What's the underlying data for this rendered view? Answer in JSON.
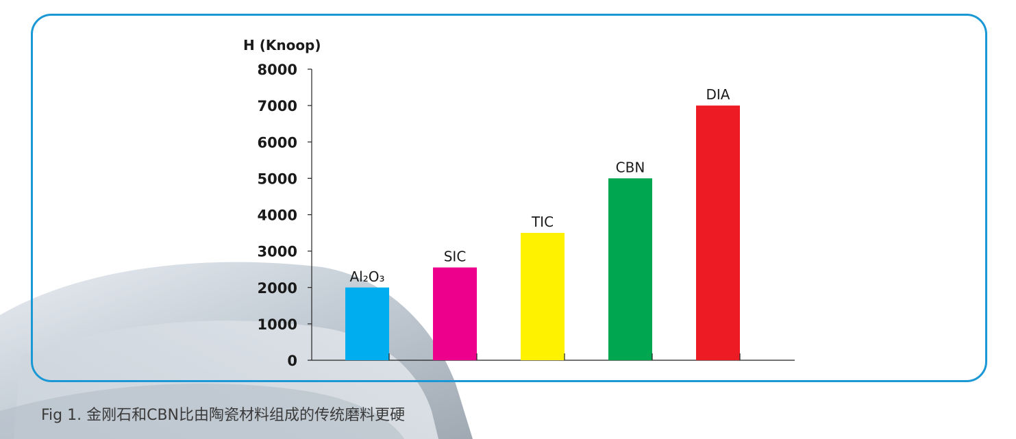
{
  "chart_data": {
    "type": "bar",
    "ylabel": "H (Knoop)",
    "ylim": [
      0,
      8000
    ],
    "yticks": [
      "0",
      "1000",
      "2000",
      "3000",
      "4000",
      "5000",
      "6000",
      "7000",
      "8000"
    ],
    "categories": [
      "Al₂O₃",
      "SIC",
      "TIC",
      "CBN",
      "DIA"
    ],
    "values": [
      2000,
      2550,
      3500,
      5000,
      7000
    ],
    "colors": [
      "#00aeef",
      "#ec008c",
      "#fff200",
      "#00a650",
      "#ed1c24"
    ],
    "grid": false,
    "legend": "none"
  },
  "caption": "Fig 1. 金刚石和CBN比由陶瓷材料组成的传统磨料更硬"
}
